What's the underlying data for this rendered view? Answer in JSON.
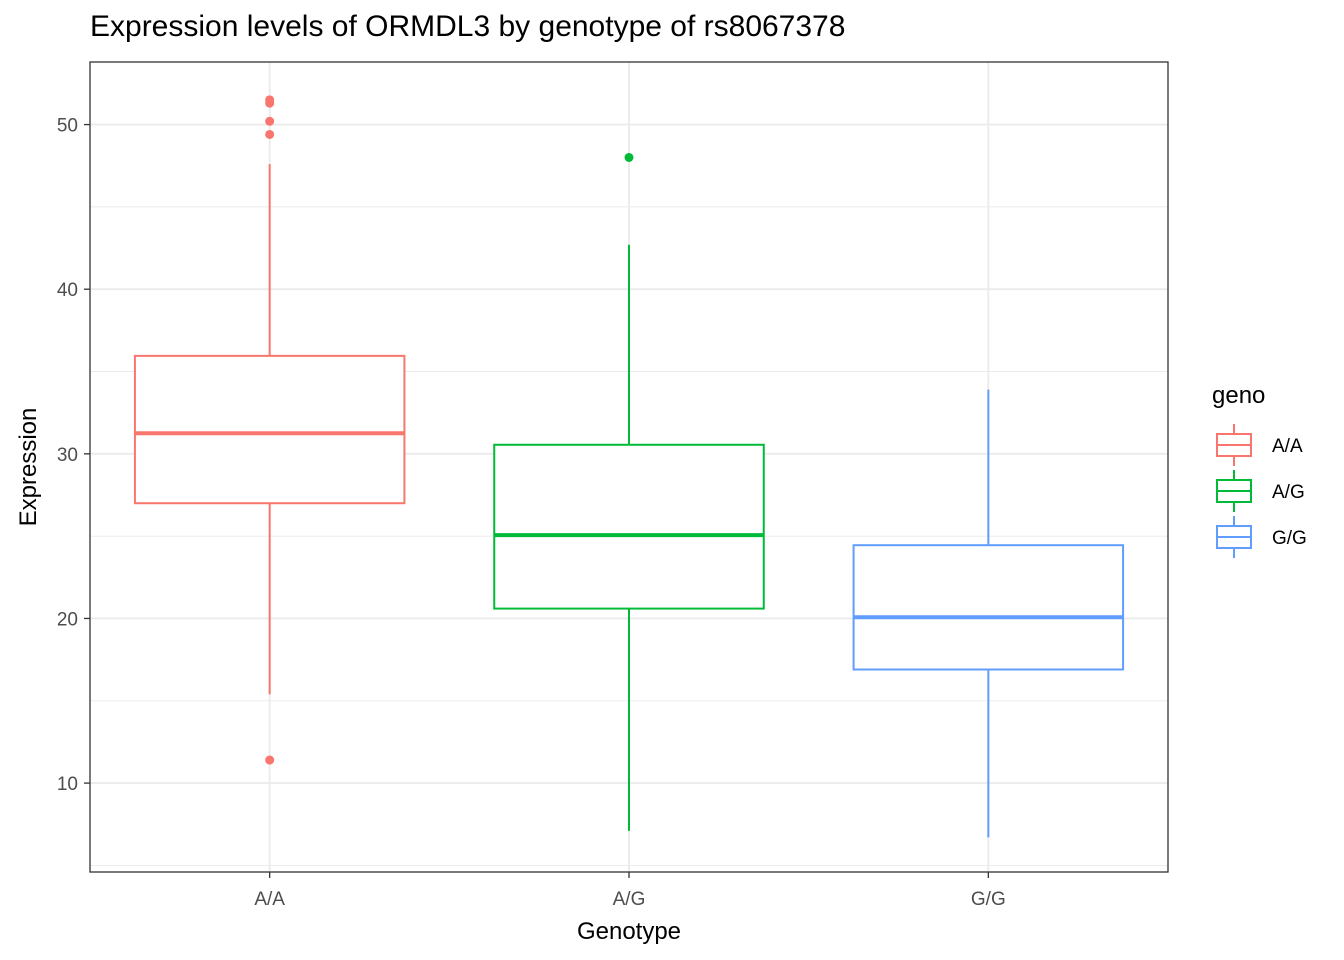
{
  "chart_data": {
    "type": "boxplot",
    "title": "Expression levels of ORMDL3 by genotype of rs8067378",
    "xlabel": "Genotype",
    "ylabel": "Expression",
    "ylim": [
      4.6,
      53.8
    ],
    "yticks": [
      10,
      20,
      30,
      40,
      50
    ],
    "grid": true,
    "legend": {
      "title": "geno",
      "position": "right",
      "entries": [
        "A/A",
        "A/G",
        "G/G"
      ]
    },
    "categories": [
      "A/A",
      "A/G",
      "G/G"
    ],
    "series": [
      {
        "name": "A/A",
        "color": "#F8766D",
        "whisker_low": 15.4,
        "q1": 27.0,
        "median": 31.25,
        "q3": 35.95,
        "whisker_high": 47.6,
        "outliers": [
          51.5,
          51.3,
          50.2,
          49.4,
          11.4
        ]
      },
      {
        "name": "A/G",
        "color": "#00BA38",
        "whisker_low": 7.1,
        "q1": 20.6,
        "median": 25.06,
        "q3": 30.55,
        "whisker_high": 42.7,
        "outliers": [
          48.0
        ]
      },
      {
        "name": "G/G",
        "color": "#619CFF",
        "whisker_low": 6.7,
        "q1": 16.9,
        "median": 20.07,
        "q3": 24.45,
        "whisker_high": 33.9,
        "outliers": []
      }
    ]
  }
}
